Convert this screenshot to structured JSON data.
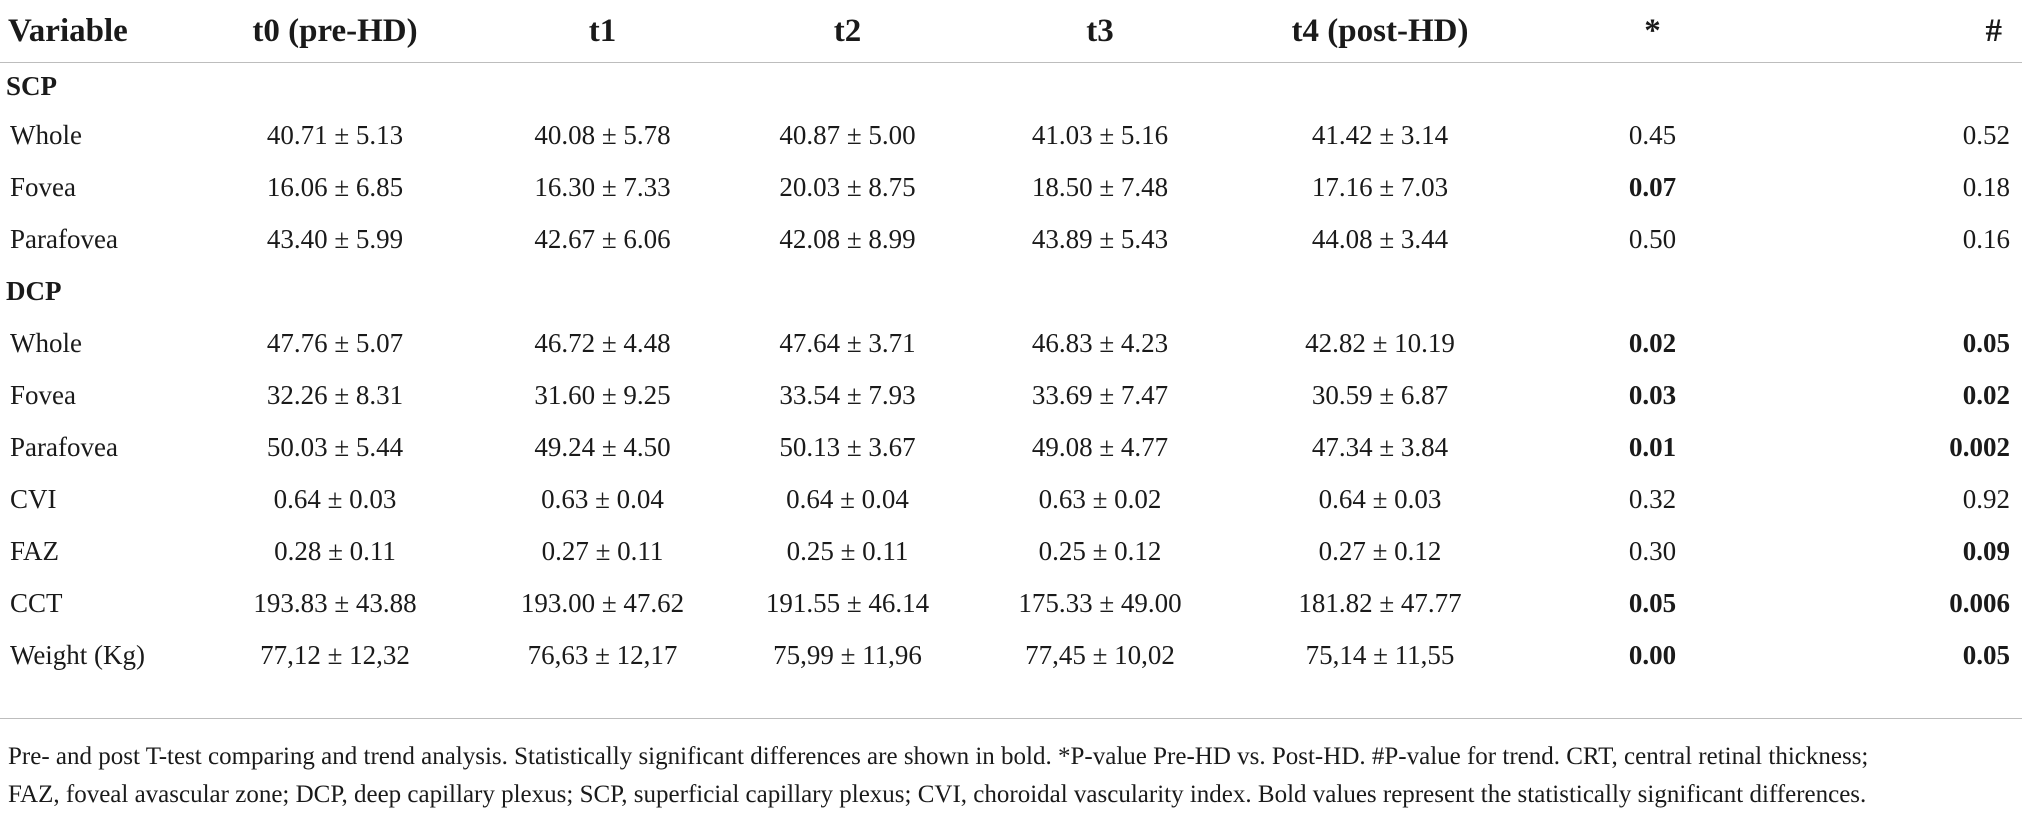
{
  "header": [
    "Variable",
    "t0 (pre-HD)",
    "t1",
    "t2",
    "t3",
    "t4 (post-HD)",
    "*",
    "#"
  ],
  "sections": {
    "scp": "SCP",
    "dcp": "DCP"
  },
  "rows": [
    {
      "label": "Whole",
      "values": [
        "40.71 ± 5.13",
        "40.08 ± 5.78",
        "40.87 ± 5.00",
        "41.03 ± 5.16",
        "41.42 ± 3.14"
      ],
      "p_pre_post": "0.45",
      "p_trend": "0.52"
    },
    {
      "label": "Fovea",
      "values": [
        "16.06 ± 6.85",
        "16.30 ± 7.33",
        "20.03 ± 8.75",
        "18.50 ± 7.48",
        "17.16 ± 7.03"
      ],
      "p_pre_post": "0.07",
      "p_trend": "0.18"
    },
    {
      "label": "Parafovea",
      "values": [
        "43.40 ± 5.99",
        "42.67 ± 6.06",
        "42.08 ± 8.99",
        "43.89 ± 5.43",
        "44.08 ± 3.44"
      ],
      "p_pre_post": "0.50",
      "p_trend": "0.16"
    },
    {
      "label": "Whole",
      "values": [
        "47.76 ± 5.07",
        "46.72 ± 4.48",
        "47.64 ± 3.71",
        "46.83 ± 4.23",
        "42.82 ± 10.19"
      ],
      "p_pre_post": "0.02",
      "p_trend": "0.05"
    },
    {
      "label": "Fovea",
      "values": [
        "32.26 ± 8.31",
        "31.60 ± 9.25",
        "33.54 ± 7.93",
        "33.69 ± 7.47",
        "30.59 ± 6.87"
      ],
      "p_pre_post": "0.03",
      "p_trend": "0.02"
    },
    {
      "label": "Parafovea",
      "values": [
        "50.03 ± 5.44",
        "49.24 ± 4.50",
        "50.13 ± 3.67",
        "49.08 ± 4.77",
        "47.34 ± 3.84"
      ],
      "p_pre_post": "0.01",
      "p_trend": "0.002"
    },
    {
      "label": "CVI",
      "values": [
        "0.64 ± 0.03",
        "0.63 ± 0.04",
        "0.64 ± 0.04",
        "0.63 ± 0.02",
        "0.64 ± 0.03"
      ],
      "p_pre_post": "0.32",
      "p_trend": "0.92"
    },
    {
      "label": "FAZ",
      "values": [
        "0.28 ± 0.11",
        "0.27 ± 0.11",
        "0.25 ± 0.11",
        "0.25 ± 0.12",
        "0.27 ± 0.12"
      ],
      "p_pre_post": "0.30",
      "p_trend": "0.09"
    },
    {
      "label": "CCT",
      "values": [
        "193.83 ± 43.88",
        "193.00 ± 47.62",
        "191.55 ± 46.14",
        "175.33 ± 49.00",
        "181.82 ± 47.77"
      ],
      "p_pre_post": "0.05",
      "p_trend": "0.006"
    },
    {
      "label": "Weight (Kg)",
      "values": [
        "77,12 ± 12,32",
        "76,63 ± 12,17",
        "75,99 ± 11,96",
        "77,45 ± 10,02",
        "75,14 ± 11,55"
      ],
      "p_pre_post": "0.00",
      "p_trend": "0.05"
    }
  ],
  "footnote": {
    "line1": "Pre- and post T-test comparing and trend analysis. Statistically significant differences are shown in bold. *P-value Pre-HD vs. Post-HD. #P-value for trend. CRT, central retinal thickness;",
    "line2": "FAZ, foveal avascular zone; DCP, deep capillary plexus; SCP, superficial capillary plexus; CVI, choroidal vascularity index. Bold values represent the statistically significant differences."
  }
}
